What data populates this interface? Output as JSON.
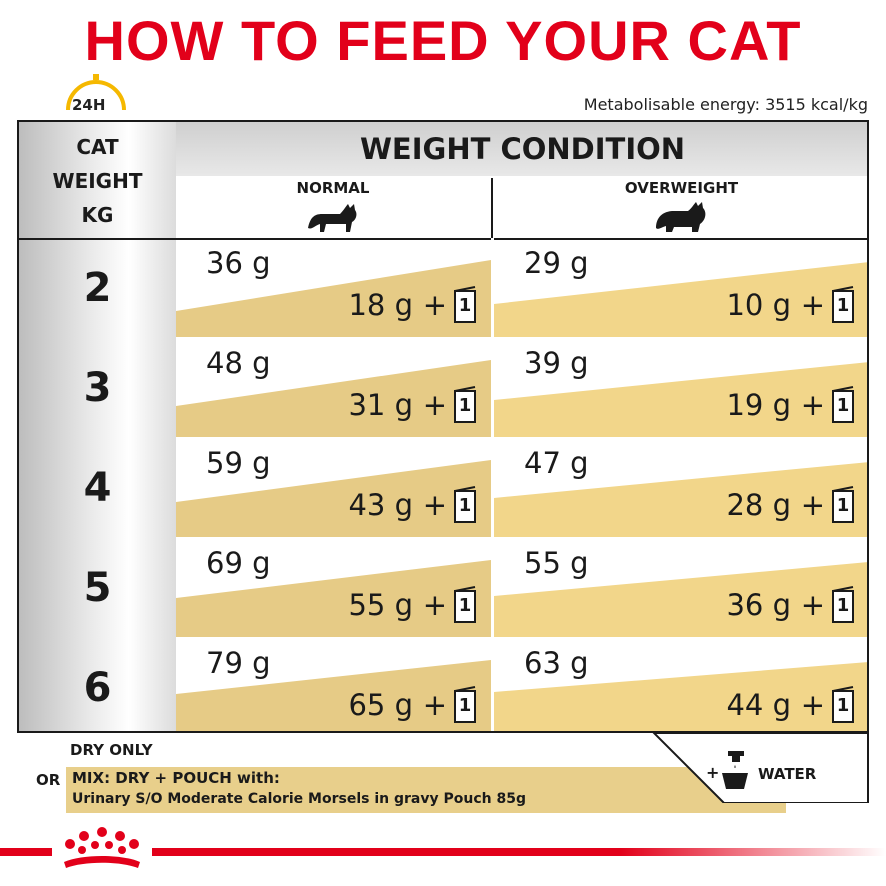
{
  "title": "HOW TO FEED YOUR CAT",
  "clock_label": "24H",
  "energy": "Metabolisable energy: 3515 kcal/kg",
  "headers": {
    "cat_weight": [
      "CAT",
      "WEIGHT",
      "KG"
    ],
    "condition": "WEIGHT CONDITION",
    "normal": "NORMAL",
    "overweight": "OVERWEIGHT"
  },
  "rows": [
    {
      "kg": "2",
      "normal_dry": "36 g",
      "normal_mix": "18 g",
      "over_dry": "29 g",
      "over_mix": "10 g"
    },
    {
      "kg": "3",
      "normal_dry": "48 g",
      "normal_mix": "31 g",
      "over_dry": "39 g",
      "over_mix": "19 g"
    },
    {
      "kg": "4",
      "normal_dry": "59 g",
      "normal_mix": "43 g",
      "over_dry": "47 g",
      "over_mix": "28 g"
    },
    {
      "kg": "5",
      "normal_dry": "69 g",
      "normal_mix": "55 g",
      "over_dry": "55 g",
      "over_mix": "36 g"
    },
    {
      "kg": "6",
      "normal_dry": "79 g",
      "normal_mix": "65 g",
      "over_dry": "63 g",
      "over_mix": "44 g"
    }
  ],
  "plus_sign": "+",
  "pouch_count": "1",
  "legend": {
    "dry_only": "DRY ONLY",
    "or": "OR",
    "mix_line1": "MIX: DRY + POUCH with:",
    "mix_line2": "Urinary S/O Moderate Calorie Morsels in gravy Pouch 85g",
    "water_plus": "+",
    "water": "WATER"
  },
  "colors": {
    "brand_red": "#e2001a",
    "mix_band": "#e8cf8b",
    "normal_wedge": "#e6cb86",
    "over_wedge": "#f2d68a"
  },
  "icons": [
    "clock-24h-icon",
    "cat-normal-icon",
    "cat-overweight-icon",
    "pouch-icon",
    "water-tap-bowl-icon",
    "royal-canin-crown-logo"
  ]
}
